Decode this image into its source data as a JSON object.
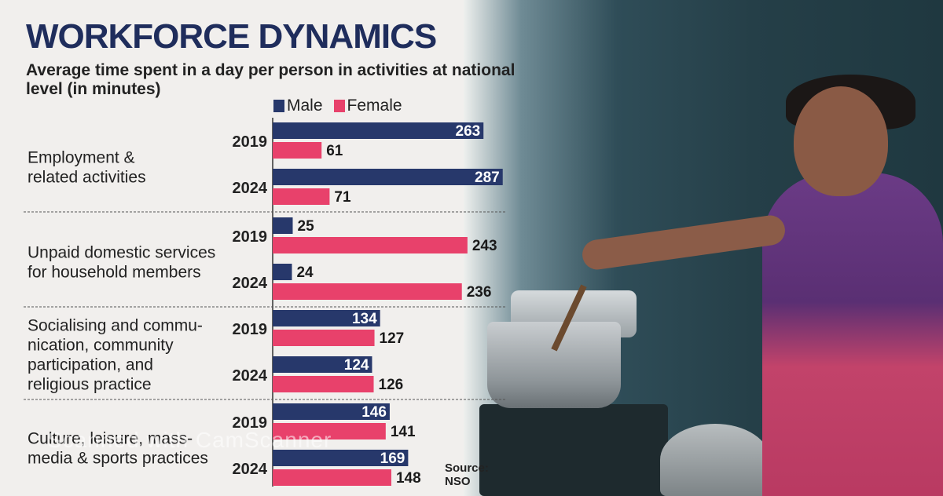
{
  "header": {
    "title": "WORKFORCE DYNAMICS",
    "subtitle": "Average time spent in a day per person in activities at national level  (in minutes)"
  },
  "legend": {
    "male": "Male",
    "female": "Female"
  },
  "colors": {
    "male": "#27386b",
    "female": "#e8416b"
  },
  "source": "Source: NSO",
  "watermark": "Scanned with CamScanner",
  "chart_data": {
    "type": "bar",
    "orientation": "horizontal",
    "unit": "minutes",
    "groups": [
      {
        "category": "Employment & related activities",
        "label_lines": [
          "Employment &",
          "related activities"
        ],
        "years": [
          {
            "year": "2019",
            "male": 263,
            "female": 61
          },
          {
            "year": "2024",
            "male": 287,
            "female": 71
          }
        ]
      },
      {
        "category": "Unpaid domestic services for household members",
        "label_lines": [
          "Unpaid domestic services",
          "for household members"
        ],
        "years": [
          {
            "year": "2019",
            "male": 25,
            "female": 243
          },
          {
            "year": "2024",
            "male": 24,
            "female": 236
          }
        ]
      },
      {
        "category": "Socialising and communication, community participation, and religious practice",
        "label_lines": [
          "Socialising and commu-",
          "nication, community",
          "participation, and",
          "religious practice"
        ],
        "years": [
          {
            "year": "2019",
            "male": 134,
            "female": 127
          },
          {
            "year": "2024",
            "male": 124,
            "female": 126
          }
        ]
      },
      {
        "category": "Culture, leisure, mass-media & sports practices",
        "label_lines": [
          "Culture, leisure, mass-",
          "media & sports practices"
        ],
        "years": [
          {
            "year": "2019",
            "male": 146,
            "female": 141
          },
          {
            "year": "2024",
            "male": 169,
            "female": 148
          }
        ]
      }
    ]
  }
}
